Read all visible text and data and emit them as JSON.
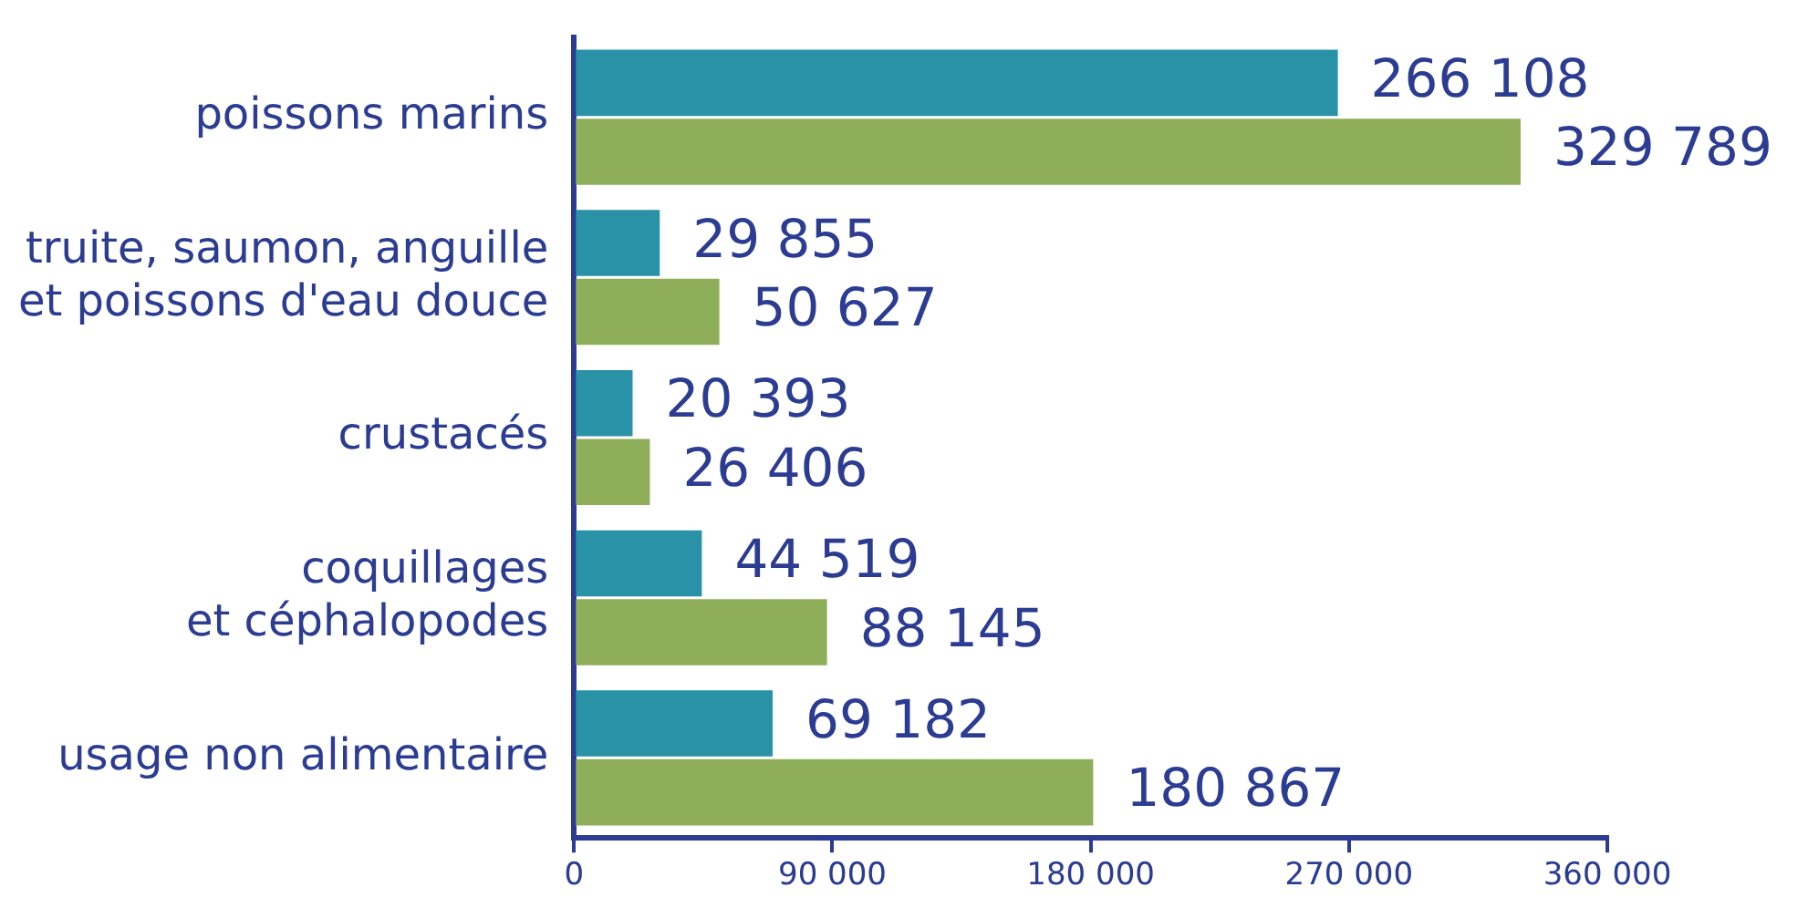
{
  "chart_data": {
    "type": "bar",
    "orientation": "horizontal",
    "categories": [
      "poissons marins",
      "truite, saumon, anguille\net poissons d'eau douce",
      "crustacés",
      "coquillages\net céphalopodes",
      "usage non alimentaire"
    ],
    "series": [
      {
        "color": "#2a92a6",
        "values": [
          266108,
          29855,
          20393,
          44519,
          69182
        ],
        "value_labels": [
          "266 108",
          "29 855",
          "20 393",
          "44 519",
          "69 182"
        ]
      },
      {
        "color": "#8fae5a",
        "values": [
          329789,
          50627,
          26406,
          88145,
          180867
        ],
        "value_labels": [
          "329 789",
          "50 627",
          "26 406",
          "88 145",
          "180 867"
        ]
      }
    ],
    "xlim": [
      0,
      360000
    ],
    "xticks": [
      0,
      {
        "value": 90000,
        "label": "90 000"
      },
      {
        "value": 180000,
        "label": "180 000"
      },
      {
        "value": 270000,
        "label": "270 000"
      },
      {
        "value": 360000,
        "label": "360 000"
      }
    ],
    "grid": false,
    "legend": false
  }
}
